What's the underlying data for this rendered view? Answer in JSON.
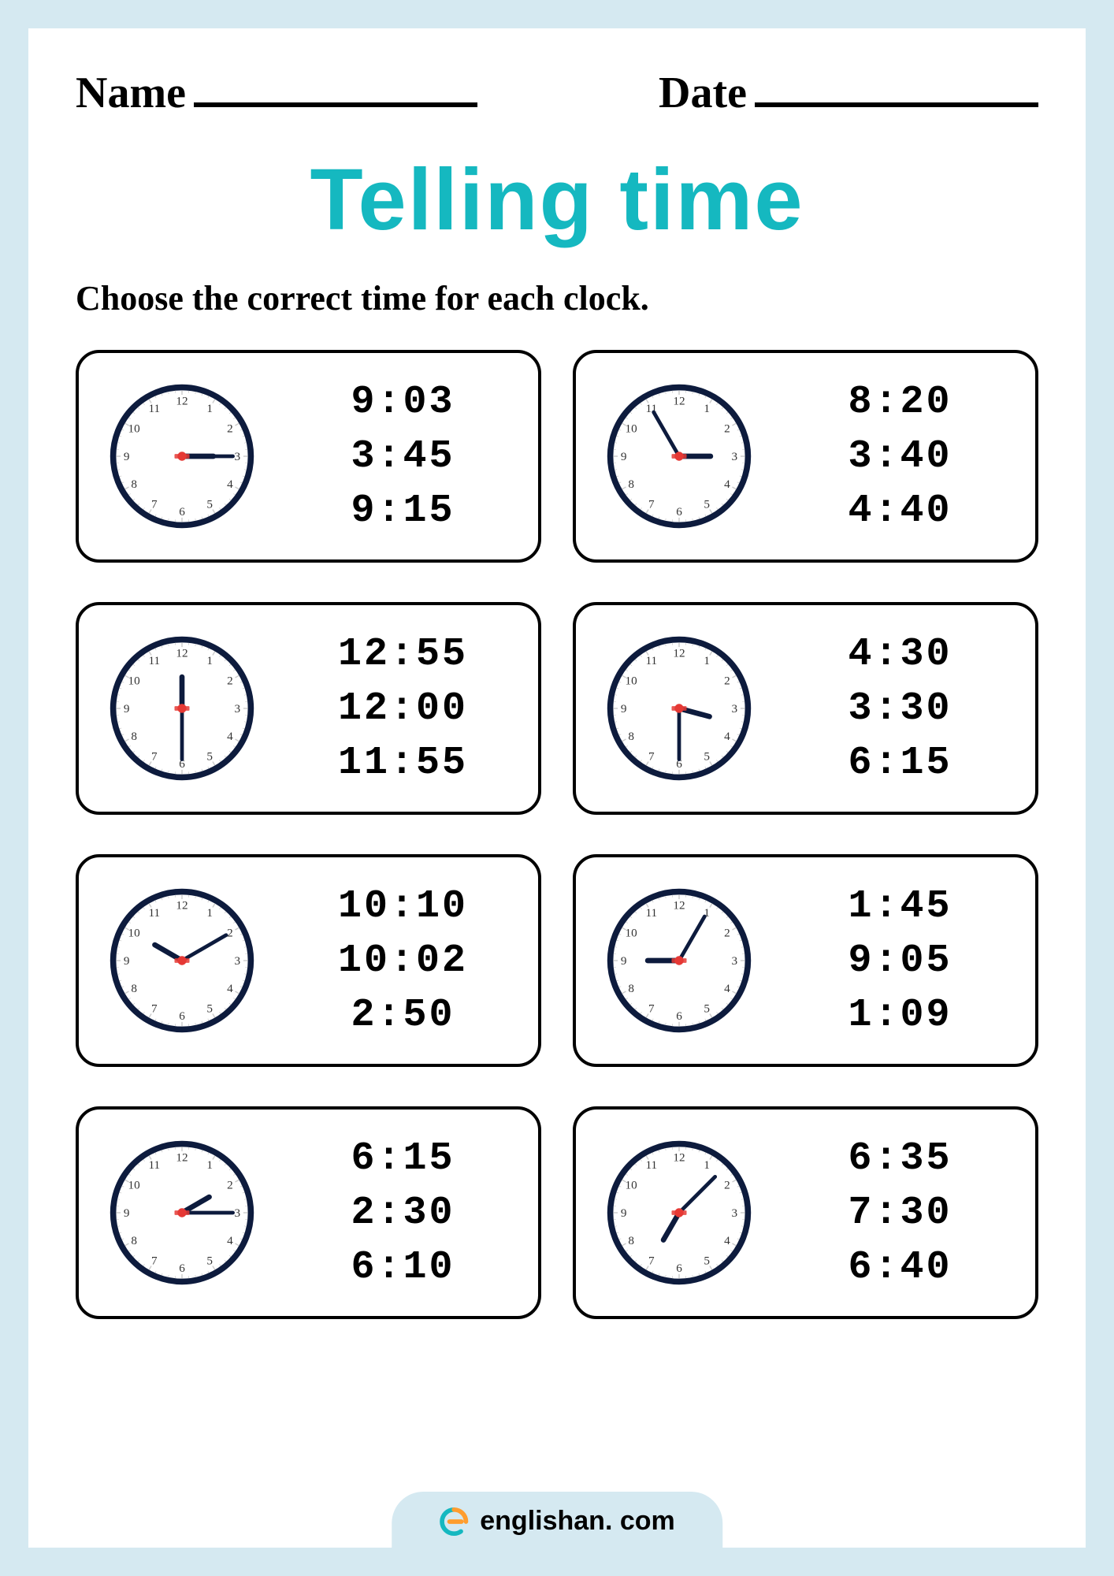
{
  "header": {
    "name_label": "Name",
    "date_label": "Date"
  },
  "title": "Telling time",
  "instruction": "Choose the correct time for each clock.",
  "colors": {
    "page_bg": "#d5e9f1",
    "title_color": "#15b8c0",
    "clock_border": "#0d1b3d",
    "hand_color": "#0d1b3d",
    "hand_accent": "#e53935",
    "text": "#000000"
  },
  "clocks": [
    {
      "hour_angle": 90,
      "minute_angle": 90,
      "options": [
        "9:03",
        "3:45",
        "9:15"
      ]
    },
    {
      "hour_angle": 90,
      "minute_angle": 330,
      "options": [
        "8:20",
        "3:40",
        "4:40"
      ]
    },
    {
      "hour_angle": 0,
      "minute_angle": 180,
      "options": [
        "12:55",
        "12:00",
        "11:55"
      ]
    },
    {
      "hour_angle": 105,
      "minute_angle": 180,
      "options": [
        "4:30",
        "3:30",
        "6:15"
      ]
    },
    {
      "hour_angle": 300,
      "minute_angle": 60,
      "options": [
        "10:10",
        "10:02",
        "2:50"
      ]
    },
    {
      "hour_angle": 270,
      "minute_angle": 30,
      "options": [
        "1:45",
        "9:05",
        "1:09"
      ]
    },
    {
      "hour_angle": 60,
      "minute_angle": 90,
      "options": [
        "6:15",
        "2:30",
        "6:10"
      ]
    },
    {
      "hour_angle": 210,
      "minute_angle": 45,
      "options": [
        "6:35",
        "7:30",
        "6:40"
      ]
    }
  ],
  "footer": {
    "brand": "englishan. com"
  }
}
